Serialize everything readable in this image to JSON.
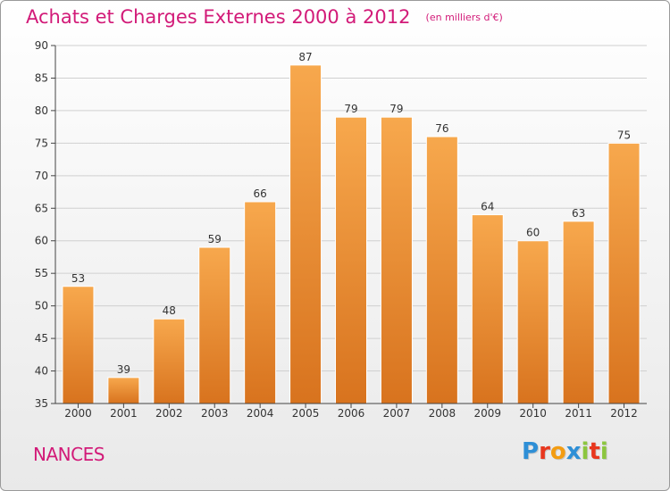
{
  "header": {
    "title": "Achats et Charges Externes 2000 à 2012",
    "subtitle": "(en milliers d'€)"
  },
  "commune": "NANCES",
  "logo": {
    "text": "Proxiti",
    "letter_colors": [
      "#2e8fd6",
      "#e8371e",
      "#f39c12",
      "#2e8fd6",
      "#8cc63f",
      "#e8371e",
      "#8cc63f"
    ]
  },
  "colors": {
    "bar_light": "#f7a84d",
    "bar_dark": "#d8731e",
    "grid": "#d0d0d0",
    "axis": "#444444",
    "title": "#d21a78"
  },
  "chart_data": {
    "type": "bar",
    "title": "Achats et Charges Externes 2000 à 2012",
    "subtitle": "(en milliers d'€)",
    "categories": [
      "2000",
      "2001",
      "2002",
      "2003",
      "2004",
      "2005",
      "2006",
      "2007",
      "2008",
      "2009",
      "2010",
      "2011",
      "2012"
    ],
    "values": [
      53,
      39,
      48,
      59,
      66,
      87,
      79,
      79,
      76,
      64,
      60,
      63,
      75
    ],
    "ylim": [
      35,
      90
    ],
    "yticks": [
      35,
      40,
      45,
      50,
      55,
      60,
      65,
      70,
      75,
      80,
      85,
      90
    ],
    "grid": true
  }
}
